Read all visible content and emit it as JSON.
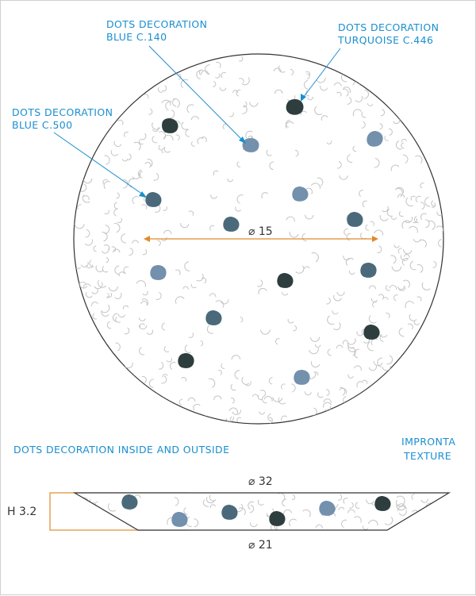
{
  "colors": {
    "blue_c140": "#7390ad",
    "blue_c500": "#4a6a7c",
    "turquoise_c446": "#2e3d3d",
    "callout": "#1a8fd0",
    "dimension": "#e08a2c",
    "outline": "#333333"
  },
  "callouts": {
    "blue_c140": {
      "line1": "DOTS DECORATION",
      "line2": "BLUE C.140"
    },
    "turquoise_c446": {
      "line1": "DOTS DECORATION",
      "line2": "TURQUOISE C.446"
    },
    "blue_c500": {
      "line1": "DOTS DECORATION",
      "line2": "BLUE C.500"
    }
  },
  "top_view": {
    "diameter_label": "⌀ 15"
  },
  "notes": {
    "inside_outside": "DOTS DECORATION INSIDE AND OUTSIDE",
    "texture_line1": "IMPRONTA",
    "texture_line2": "TEXTURE"
  },
  "side_view": {
    "top_diameter_label": "⌀ 32",
    "bottom_diameter_label": "⌀ 21",
    "height_label": "H 3.2"
  }
}
